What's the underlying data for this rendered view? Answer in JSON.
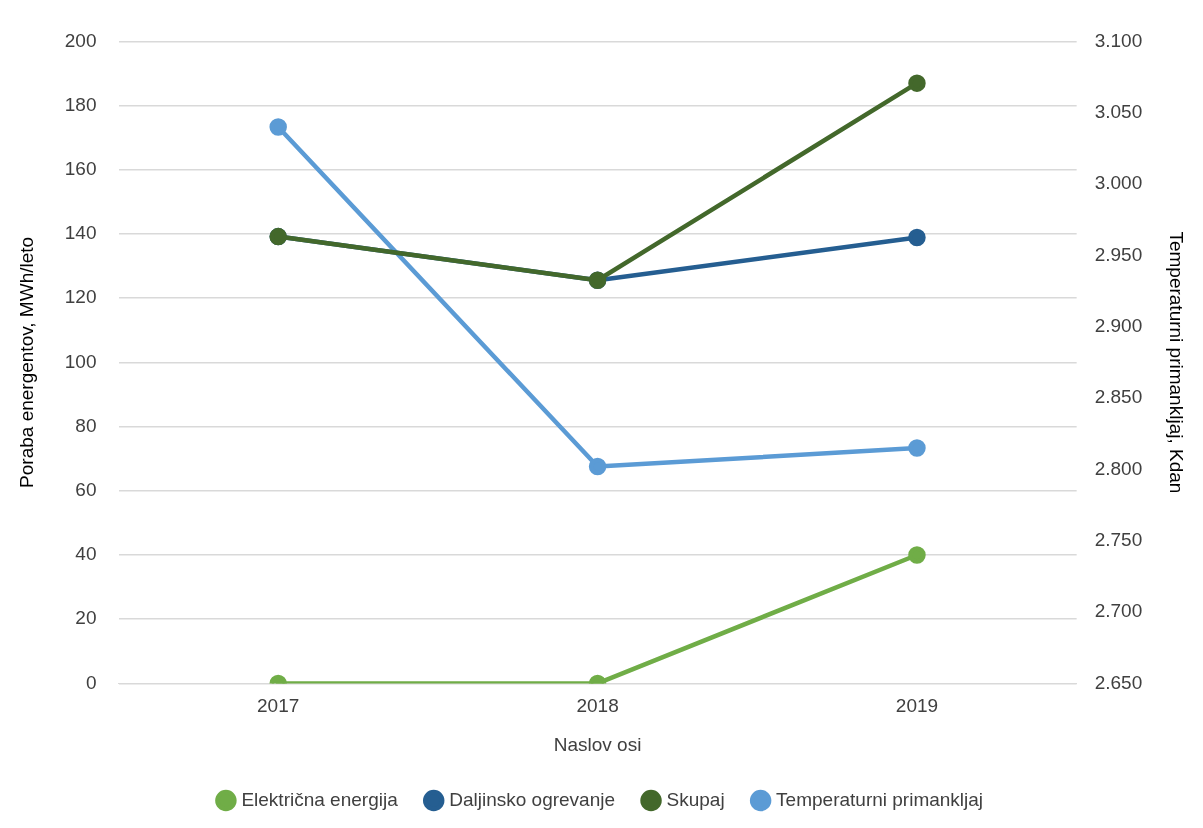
{
  "chart_data": {
    "type": "line",
    "xlabel": "Naslov osi",
    "ylabel": "Poraba energentov, MWh/leto",
    "y2label": "Temperaturni primankljaj, Kdan",
    "categories": [
      "2017",
      "2018",
      "2019"
    ],
    "series": [
      {
        "name": "Električna energija",
        "color": "#70ad47",
        "values": [
          0,
          0,
          40
        ]
      },
      {
        "name": "Daljinsko ogrevanje",
        "color": "#255e91",
        "values": [
          139.2,
          125.6,
          138.9
        ]
      },
      {
        "name": "Skupaj",
        "color": "#43682b",
        "values": [
          139.2,
          125.6,
          187
        ]
      },
      {
        "name": "Temperaturni primankljaj",
        "color": "#5b9bd5",
        "axis": "y2",
        "values": [
          3.04,
          2.802,
          2.815
        ]
      }
    ],
    "ylim": [
      0,
      200
    ],
    "yticks": [
      0,
      20,
      40,
      60,
      80,
      100,
      120,
      140,
      160,
      180,
      200
    ],
    "y2lim": [
      2.65,
      3.1
    ],
    "y2ticks": [
      {
        "value": 2.65,
        "label": "2.650"
      },
      {
        "value": 2.7,
        "label": "2.700"
      },
      {
        "value": 2.75,
        "label": "2.750"
      },
      {
        "value": 2.8,
        "label": "2.800"
      },
      {
        "value": 2.85,
        "label": "2.850"
      },
      {
        "value": 2.9,
        "label": "2.900"
      },
      {
        "value": 2.95,
        "label": "2.950"
      },
      {
        "value": 3.0,
        "label": "3.000"
      },
      {
        "value": 3.05,
        "label": "3.050"
      },
      {
        "value": 3.1,
        "label": "3.100"
      }
    ],
    "grid": "y",
    "legend": "bottom",
    "marker": "circle",
    "line_style": "solid"
  }
}
